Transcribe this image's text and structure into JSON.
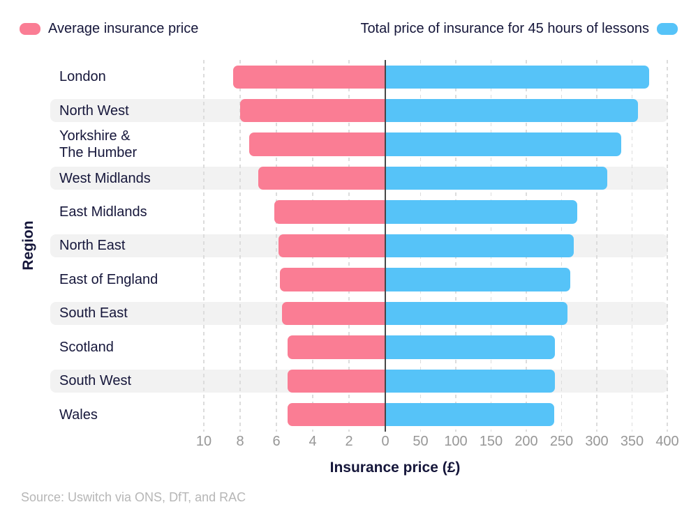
{
  "legend": {
    "average": {
      "label": "Average insurance price",
      "color": "#FA7D94"
    },
    "total": {
      "label": "Total price of insurance for 45 hours of lessons",
      "color": "#56C3F8"
    }
  },
  "source_note": "Source: Uswitch via ONS, DfT, and RAC",
  "chart_data": {
    "type": "bar",
    "variant": "diverging-horizontal",
    "title": "",
    "xlabel": "Insurance price (£)",
    "ylabel": "Region",
    "categories": [
      "London",
      "North West",
      "Yorkshire &\nThe Humber",
      "West Midlands",
      "East Midlands",
      "North East",
      "East of England",
      "South East",
      "Scotland",
      "South West",
      "Wales"
    ],
    "series": [
      {
        "name": "Average insurance price",
        "side": "left",
        "color": "#FA7D94",
        "axis_range": [
          0,
          10
        ],
        "axis_ticks": [
          10,
          8,
          6,
          4,
          2
        ],
        "values": [
          8.4,
          8.0,
          7.5,
          7.0,
          6.1,
          5.9,
          5.8,
          5.7,
          5.4,
          5.4,
          5.4
        ]
      },
      {
        "name": "Total price of insurance for 45 hours of lessons",
        "side": "right",
        "color": "#56C3F8",
        "axis_range": [
          0,
          400
        ],
        "axis_ticks": [
          50,
          100,
          150,
          200,
          250,
          300,
          350,
          400
        ],
        "values": [
          374,
          358,
          335,
          315,
          272,
          267,
          262,
          258,
          241,
          241,
          240
        ]
      }
    ],
    "zero_tick_label": "0",
    "grid": "vertical-dashed",
    "legend_position": "top",
    "row_striping": "alternate-rows"
  }
}
